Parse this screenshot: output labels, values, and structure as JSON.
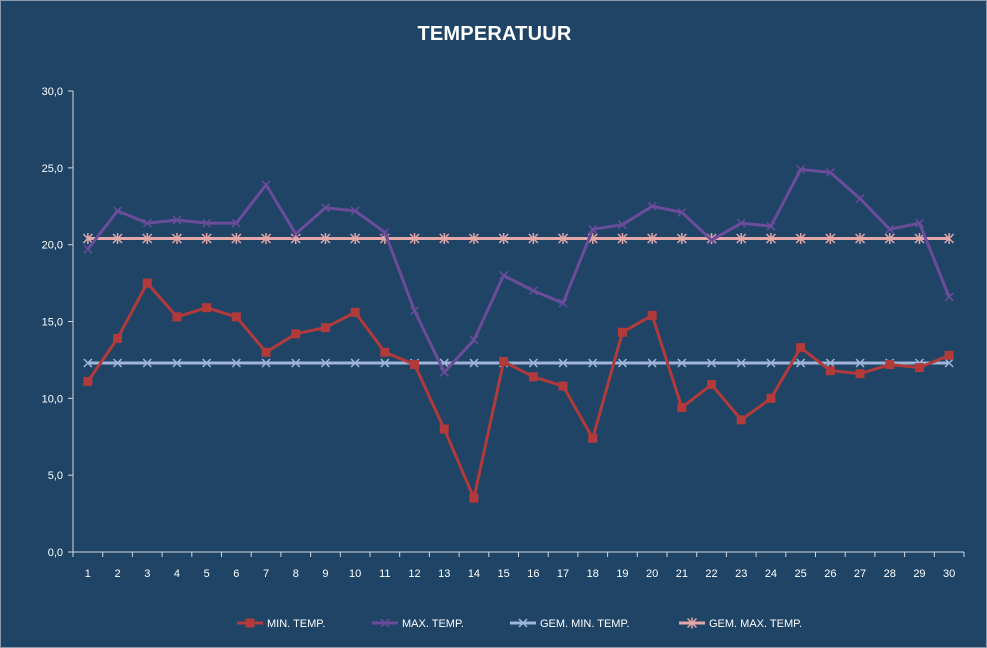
{
  "chart_data": {
    "type": "line",
    "title": "TEMPERATUUR",
    "xlabel": "",
    "ylabel": "",
    "ylim": [
      0,
      30
    ],
    "yticks": [
      "0,0",
      "5,0",
      "10,0",
      "15,0",
      "20,0",
      "25,0",
      "30,0"
    ],
    "x": [
      1,
      2,
      3,
      4,
      5,
      6,
      7,
      8,
      9,
      10,
      11,
      12,
      13,
      14,
      15,
      16,
      17,
      18,
      19,
      20,
      21,
      22,
      23,
      24,
      25,
      26,
      27,
      28,
      29,
      30
    ],
    "grid": false,
    "legend_position": "bottom",
    "series": [
      {
        "name": "MIN. TEMP.",
        "color": "#b23a3a",
        "marker": "square",
        "values": [
          11.1,
          13.9,
          17.5,
          15.3,
          15.9,
          15.3,
          13.0,
          14.2,
          14.6,
          15.6,
          13.0,
          12.2,
          8.0,
          3.5,
          12.4,
          11.4,
          10.8,
          7.4,
          14.3,
          15.4,
          9.4,
          10.9,
          8.6,
          10.0,
          13.3,
          11.8,
          11.6,
          12.2,
          12.0,
          12.8
        ]
      },
      {
        "name": "MAX. TEMP.",
        "color": "#6b4c9a",
        "marker": "x",
        "values": [
          19.7,
          22.2,
          21.4,
          21.6,
          21.4,
          21.4,
          23.9,
          20.7,
          22.4,
          22.2,
          20.8,
          15.7,
          11.7,
          13.8,
          18.0,
          17.0,
          16.2,
          21.0,
          21.3,
          22.5,
          22.1,
          20.3,
          21.4,
          21.2,
          24.9,
          24.7,
          23.0,
          21.0,
          21.4,
          16.6
        ]
      },
      {
        "name": "GEM. MIN. TEMP.",
        "color": "#9fb6d8",
        "marker": "x",
        "values": [
          12.3,
          12.3,
          12.3,
          12.3,
          12.3,
          12.3,
          12.3,
          12.3,
          12.3,
          12.3,
          12.3,
          12.3,
          12.3,
          12.3,
          12.3,
          12.3,
          12.3,
          12.3,
          12.3,
          12.3,
          12.3,
          12.3,
          12.3,
          12.3,
          12.3,
          12.3,
          12.3,
          12.3,
          12.3,
          12.3
        ]
      },
      {
        "name": "GEM. MAX. TEMP.",
        "color": "#e3a7a7",
        "marker": "star",
        "values": [
          20.4,
          20.4,
          20.4,
          20.4,
          20.4,
          20.4,
          20.4,
          20.4,
          20.4,
          20.4,
          20.4,
          20.4,
          20.4,
          20.4,
          20.4,
          20.4,
          20.4,
          20.4,
          20.4,
          20.4,
          20.4,
          20.4,
          20.4,
          20.4,
          20.4,
          20.4,
          20.4,
          20.4,
          20.4,
          20.4
        ]
      }
    ]
  }
}
